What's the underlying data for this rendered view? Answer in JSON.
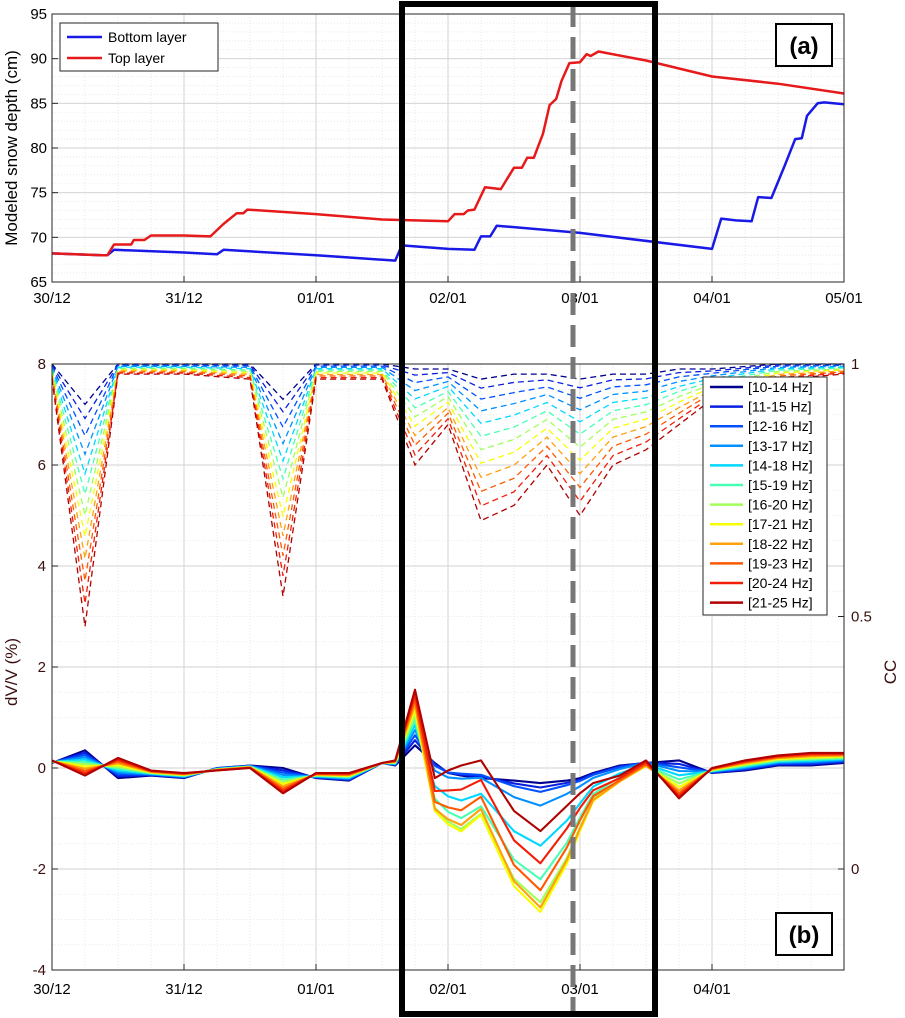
{
  "chart_data": [
    {
      "panel": "(a)",
      "type": "line",
      "title": "",
      "xlabel": "",
      "ylabel": "Modeled snow depth (cm)",
      "xlim": [
        0,
        6
      ],
      "ylim": [
        65,
        95
      ],
      "yticks": [
        65,
        70,
        75,
        80,
        85,
        90,
        95
      ],
      "xticks": [
        {
          "x": 0,
          "label": "30/12"
        },
        {
          "x": 1,
          "label": "31/12"
        },
        {
          "x": 2,
          "label": "01/01"
        },
        {
          "x": 3,
          "label": "02/01"
        },
        {
          "x": 4,
          "label": "03/01"
        },
        {
          "x": 5,
          "label": "04/01"
        },
        {
          "x": 6,
          "label": "05/01"
        }
      ],
      "grid": true,
      "legend_position": "top-left",
      "series": [
        {
          "name": "Bottom layer",
          "color": "#1a1ae6",
          "points": [
            [
              0,
              68.2
            ],
            [
              0.38,
              68.0
            ],
            [
              0.42,
              68.0
            ],
            [
              0.47,
              68.6
            ],
            [
              1.0,
              68.3
            ],
            [
              1.25,
              68.1
            ],
            [
              1.3,
              68.6
            ],
            [
              2.0,
              68.0
            ],
            [
              2.6,
              67.4
            ],
            [
              2.65,
              69.1
            ],
            [
              3.0,
              68.7
            ],
            [
              3.2,
              68.6
            ],
            [
              3.25,
              70.1
            ],
            [
              3.32,
              70.1
            ],
            [
              3.37,
              71.3
            ],
            [
              4.0,
              70.5
            ],
            [
              5.0,
              68.7
            ],
            [
              5.07,
              72.1
            ],
            [
              5.18,
              71.9
            ],
            [
              5.3,
              71.8
            ],
            [
              5.35,
              74.5
            ],
            [
              5.45,
              74.4
            ],
            [
              5.55,
              78.0
            ],
            [
              5.63,
              81.0
            ],
            [
              5.68,
              81.1
            ],
            [
              5.72,
              83.6
            ],
            [
              5.8,
              85.0
            ],
            [
              5.85,
              85.1
            ],
            [
              6.0,
              84.9
            ]
          ]
        },
        {
          "name": "Top layer",
          "color": "#e61a1a",
          "points": [
            [
              0,
              68.2
            ],
            [
              0.38,
              68.0
            ],
            [
              0.42,
              68.0
            ],
            [
              0.47,
              69.2
            ],
            [
              0.6,
              69.2
            ],
            [
              0.62,
              69.7
            ],
            [
              0.7,
              69.7
            ],
            [
              0.75,
              70.2
            ],
            [
              1.0,
              70.2
            ],
            [
              1.2,
              70.1
            ],
            [
              1.3,
              71.5
            ],
            [
              1.4,
              72.7
            ],
            [
              1.45,
              72.7
            ],
            [
              1.48,
              73.1
            ],
            [
              2.0,
              72.6
            ],
            [
              2.5,
              72.0
            ],
            [
              3.0,
              71.8
            ],
            [
              3.05,
              72.6
            ],
            [
              3.12,
              72.6
            ],
            [
              3.15,
              73.0
            ],
            [
              3.2,
              73.1
            ],
            [
              3.28,
              75.6
            ],
            [
              3.4,
              75.4
            ],
            [
              3.5,
              77.8
            ],
            [
              3.56,
              77.8
            ],
            [
              3.6,
              78.9
            ],
            [
              3.65,
              78.9
            ],
            [
              3.72,
              81.6
            ],
            [
              3.77,
              84.8
            ],
            [
              3.82,
              85.5
            ],
            [
              3.86,
              87.5
            ],
            [
              3.92,
              89.5
            ],
            [
              4.0,
              89.6
            ],
            [
              4.05,
              90.5
            ],
            [
              4.08,
              90.3
            ],
            [
              4.14,
              90.8
            ],
            [
              4.5,
              89.8
            ],
            [
              5.0,
              88.0
            ],
            [
              5.5,
              87.2
            ],
            [
              6.0,
              86.1
            ]
          ]
        }
      ]
    },
    {
      "panel": "(b)",
      "type": "line",
      "title": "",
      "xlabel": "",
      "ylabel": "dV/V (%)",
      "ylabel_right": "CC",
      "xlim": [
        0,
        6
      ],
      "ylim": [
        -4,
        8
      ],
      "yticks": [
        -4,
        -2,
        0,
        2,
        4,
        6,
        8
      ],
      "ylim_right": [
        -0.2,
        1
      ],
      "yticks_right": [
        {
          "v": 1,
          "label": "1"
        },
        {
          "v": 0.5,
          "label": "0.5"
        },
        {
          "v": 0,
          "label": "0"
        }
      ],
      "xticks": [
        {
          "x": 0,
          "label": "30/12"
        },
        {
          "x": 1,
          "label": "31/12"
        },
        {
          "x": 2,
          "label": "01/01"
        },
        {
          "x": 3,
          "label": "02/01"
        },
        {
          "x": 4,
          "label": "03/01"
        },
        {
          "x": 5,
          "label": "04/01"
        }
      ],
      "grid": true,
      "legend_position": "right",
      "bands": [
        "[10-14 Hz]",
        "[11-15 Hz]",
        "[12-16 Hz]",
        "[13-17 Hz]",
        "[14-18 Hz]",
        "[15-19 Hz]",
        "[16-20 Hz]",
        "[17-21 Hz]",
        "[18-22 Hz]",
        "[19-23 Hz]",
        "[20-24 Hz]",
        "[21-25 Hz]"
      ],
      "colors": [
        "#00008f",
        "#0a20e0",
        "#0050ff",
        "#0090ff",
        "#00d8ff",
        "#48ffb4",
        "#a0ff5a",
        "#f6ff00",
        "#ffa010",
        "#ff5a00",
        "#f21d08",
        "#b00000"
      ],
      "x_dvv": [
        0,
        0.25,
        0.5,
        0.75,
        1.0,
        1.25,
        1.5,
        1.75,
        2.0,
        2.25,
        2.5,
        2.6,
        2.75,
        2.9,
        3.0,
        3.1,
        3.25,
        3.5,
        3.7,
        3.9,
        4.0,
        4.1,
        4.3,
        4.5,
        4.75,
        5.0,
        5.25,
        5.5,
        5.75,
        6.0
      ],
      "dvv_low": [
        0.1,
        0.35,
        -0.2,
        -0.15,
        -0.2,
        0,
        0.05,
        0,
        -0.2,
        -0.25,
        0.1,
        0.05,
        0.45,
        0.1,
        -0.1,
        -0.15,
        -0.2,
        -0.25,
        -0.3,
        -0.25,
        -0.2,
        -0.1,
        0.05,
        0.1,
        0.15,
        -0.1,
        -0.05,
        0.05,
        0.05,
        0.1
      ],
      "dvv_high": [
        0.15,
        -0.15,
        0.2,
        -0.05,
        -0.1,
        -0.05,
        0,
        -0.5,
        -0.1,
        -0.1,
        0.1,
        0.15,
        1.55,
        -0.2,
        -0.05,
        0.05,
        0.15,
        -0.85,
        -1.25,
        -0.75,
        -0.5,
        -0.3,
        -0.15,
        0.15,
        -0.6,
        0,
        0.15,
        0.25,
        0.3,
        0.3
      ],
      "dvv_max_dip": [
        0,
        0,
        0,
        0,
        0,
        0,
        0,
        0,
        0,
        0,
        0,
        0,
        0,
        -0.8,
        -1.1,
        -1.3,
        -1.0,
        -1.8,
        -2.05,
        -1.4,
        -0.9,
        -0.45,
        -0.2,
        -0.1,
        -0.05,
        0,
        0,
        0,
        0,
        0
      ],
      "x_cc": [
        0,
        0.25,
        0.5,
        1.0,
        1.5,
        1.75,
        2.0,
        2.5,
        2.75,
        3.0,
        3.25,
        3.5,
        3.75,
        4.0,
        4.25,
        4.5,
        4.75,
        5.0,
        5.5,
        6.0
      ],
      "cc_min": [
        0.97,
        0.48,
        0.98,
        0.98,
        0.97,
        0.54,
        0.97,
        0.97,
        0.8,
        0.88,
        0.69,
        0.72,
        0.8,
        0.7,
        0.8,
        0.83,
        0.88,
        0.93,
        0.97,
        0.98
      ],
      "cc_max": [
        1,
        0.92,
        1,
        1,
        1,
        0.93,
        1,
        1,
        0.99,
        0.99,
        0.97,
        0.98,
        0.98,
        0.97,
        0.98,
        0.98,
        0.99,
        0.99,
        1,
        1
      ]
    }
  ],
  "annotations": {
    "panel_a_tag": "(a)",
    "panel_b_tag": "(b)"
  },
  "colors": {
    "highlight_box": "#000000",
    "dashed_line": "#777777"
  }
}
